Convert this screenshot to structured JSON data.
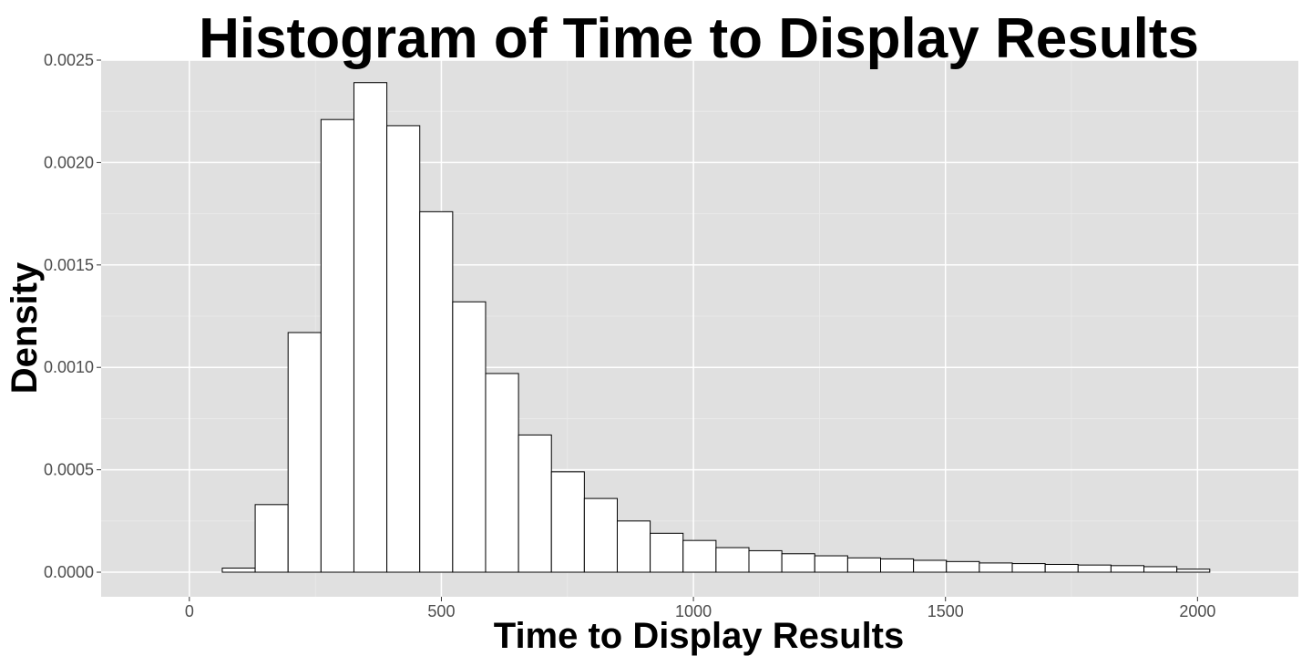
{
  "chart_data": {
    "type": "histogram",
    "title": "Histogram of Time to Display Results",
    "xlabel": "Time to Display Results",
    "ylabel": "Density",
    "xlim": [
      -175,
      2200
    ],
    "ylim": [
      -0.00012,
      0.0025
    ],
    "x_ticks": [
      0,
      500,
      1000,
      1500,
      2000
    ],
    "x_tick_labels": [
      "0",
      "500",
      "1000",
      "1500",
      "2000"
    ],
    "y_ticks": [
      0,
      0.0005,
      0.001,
      0.0015,
      0.002,
      0.0025
    ],
    "y_tick_labels": [
      "0.0000",
      "0.0005",
      "0.0010",
      "0.0015",
      "0.0020",
      "0.0025"
    ],
    "grid": true,
    "bin_width": 65.3,
    "bin_start": -65.3,
    "densities": [
      0,
      0,
      2e-05,
      0.00033,
      0.00117,
      0.00221,
      0.00239,
      0.00218,
      0.00176,
      0.00132,
      0.00097,
      0.00067,
      0.00049,
      0.00036,
      0.00025,
      0.00019,
      0.000155,
      0.00012,
      0.000105,
      9e-05,
      8e-05,
      7e-05,
      6.5e-05,
      5.8e-05,
      5.2e-05,
      4.5e-05,
      4.2e-05,
      3.8e-05,
      3.5e-05,
      3.2e-05,
      2.7e-05,
      1.5e-05,
      0
    ],
    "colors": {
      "panel": "#e0e0e0",
      "grid_major": "#ffffff",
      "grid_minor": "#ebebeb",
      "bar_fill": "#ffffff",
      "bar_stroke": "#000000",
      "tick": "#333333"
    }
  }
}
